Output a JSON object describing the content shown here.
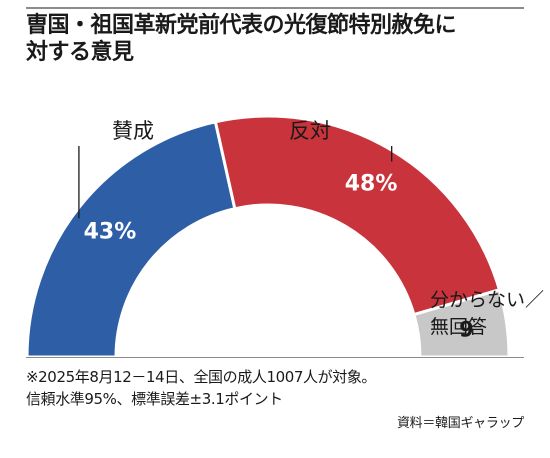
{
  "title_lines": [
    "曺国・祖国革新党前代表の光復節特別赦免に",
    "対する意見"
  ],
  "chart_data": {
    "type": "pie",
    "layout": "semicircle",
    "title": "曺国・祖国革新党前代表の光復節特別赦免に対する意見",
    "categories": [
      "賛成",
      "反対",
      "分からない／無回答"
    ],
    "values": [
      43,
      48,
      9
    ],
    "value_labels": [
      "43%",
      "48%",
      "9"
    ],
    "legend": "none",
    "colors": [
      "#2e5fa6",
      "#c9333b",
      "#c8c8c8"
    ]
  },
  "category_label_lines": [
    [
      "賛成"
    ],
    [
      "反対"
    ],
    [
      "分からない／",
      "無回答"
    ]
  ],
  "note_lines": [
    "※2025年8月12－14日、全国の成人1007人が対象。",
    "信頼水準95%、標準誤差±3.1ポイント"
  ],
  "source": "資料＝韓国ギャラップ"
}
